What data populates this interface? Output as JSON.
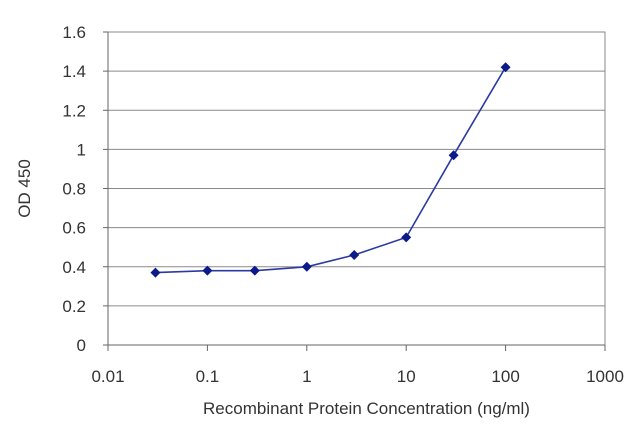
{
  "chart_data": {
    "type": "line",
    "xlabel": "Recombinant Protein Concentration (ng/ml)",
    "ylabel": "OD 450",
    "xscale": "log",
    "xlim": [
      0.01,
      1000
    ],
    "ylim": [
      0,
      1.6
    ],
    "grid": "horizontal",
    "legend": "none",
    "line_color": "#2b3aa0",
    "marker_color": "#0c1a8a",
    "x_tick_labels": [
      "0.01",
      "0.1",
      "1",
      "10",
      "100",
      "1000"
    ],
    "x_tick_values": [
      0.01,
      0.1,
      1,
      10,
      100,
      1000
    ],
    "y_tick_labels": [
      "0",
      "0.2",
      "0.4",
      "0.6",
      "0.8",
      "1",
      "1.2",
      "1.4",
      "1.6"
    ],
    "y_tick_values": [
      0,
      0.2,
      0.4,
      0.6,
      0.8,
      1,
      1.2,
      1.4,
      1.6
    ],
    "series": [
      {
        "x": [
          0.03,
          0.1,
          0.3,
          1,
          3,
          10,
          30,
          100
        ],
        "y": [
          0.37,
          0.38,
          0.38,
          0.4,
          0.46,
          0.55,
          0.97,
          1.42
        ]
      }
    ]
  }
}
